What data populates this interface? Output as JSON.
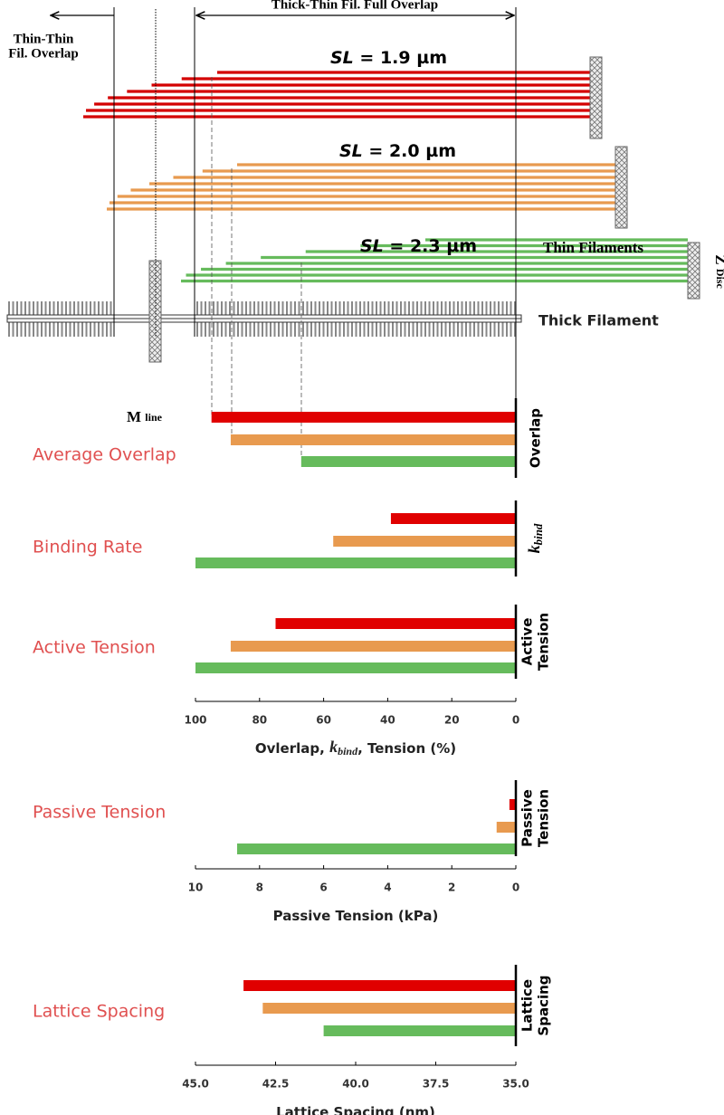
{
  "diagram": {
    "full_overlap": "Thick-Thin Fil. Full Overlap",
    "thin_overlap": [
      "Thin-Thin",
      "Fil. Overlap"
    ],
    "sarcomeres": [
      {
        "var": "SL",
        "text": " = 1.9 µm"
      },
      {
        "var": "SL",
        "text": " = 2.0 µm"
      },
      {
        "var": "SL",
        "text": " = 2.3 µm"
      }
    ],
    "thin_filaments": "Thin Filaments",
    "z_disc": {
      "main": "Z",
      "small": "Disc"
    },
    "thick_filament": "Thick Filament",
    "m_line": {
      "main": "M",
      "small": "line"
    }
  },
  "chart_data": [
    {
      "type": "bar",
      "title": "Average Overlap",
      "side_label": [
        "Overlap"
      ],
      "values": [
        95,
        89,
        67
      ],
      "colors": [
        "#e00000",
        "#e89a4f",
        "#66bb5c"
      ],
      "xlim": [
        100,
        0
      ]
    },
    {
      "type": "bar",
      "title": "Binding Rate",
      "side_label": [
        {
          "k": "k",
          "sub": "bind"
        }
      ],
      "values": [
        39,
        57,
        100
      ],
      "colors": [
        "#e00000",
        "#e89a4f",
        "#66bb5c"
      ],
      "xlim": [
        100,
        0
      ]
    },
    {
      "type": "bar",
      "title": "Active Tension",
      "side_label": [
        "Active",
        "Tension"
      ],
      "values": [
        75,
        89,
        100
      ],
      "colors": [
        "#e00000",
        "#e89a4f",
        "#66bb5c"
      ],
      "xlim": [
        100,
        0
      ],
      "xticks": [
        100,
        80,
        60,
        40,
        20,
        0
      ],
      "xlabel": {
        "before": "Ovlerlap, ",
        "k": "k",
        "sub": "bind",
        "after": ", Tension (%)"
      }
    },
    {
      "type": "bar",
      "title": "Passive Tension",
      "side_label": [
        "Passive",
        "Tension"
      ],
      "values": [
        0.2,
        0.6,
        8.7
      ],
      "colors": [
        "#e00000",
        "#e89a4f",
        "#66bb5c"
      ],
      "xlim": [
        10,
        0
      ],
      "xticks": [
        10,
        8,
        6,
        4,
        2,
        0
      ],
      "xlabel": {
        "before": "Passive Tension (kPa)"
      }
    },
    {
      "type": "bar",
      "title": "Lattice Spacing",
      "side_label": [
        "Lattice",
        "Spacing"
      ],
      "values": [
        43.5,
        42.9,
        41.0
      ],
      "colors": [
        "#e00000",
        "#e89a4f",
        "#66bb5c"
      ],
      "xlim": [
        45,
        35
      ],
      "xticks": [
        {
          "value": 45,
          "label": "45.0"
        },
        42.5,
        {
          "value": 40,
          "label": "40.0"
        },
        37.5,
        {
          "value": 35,
          "label": "35.0"
        }
      ],
      "xlabel": {
        "before": "Lattice Spacing (nm)"
      }
    }
  ]
}
